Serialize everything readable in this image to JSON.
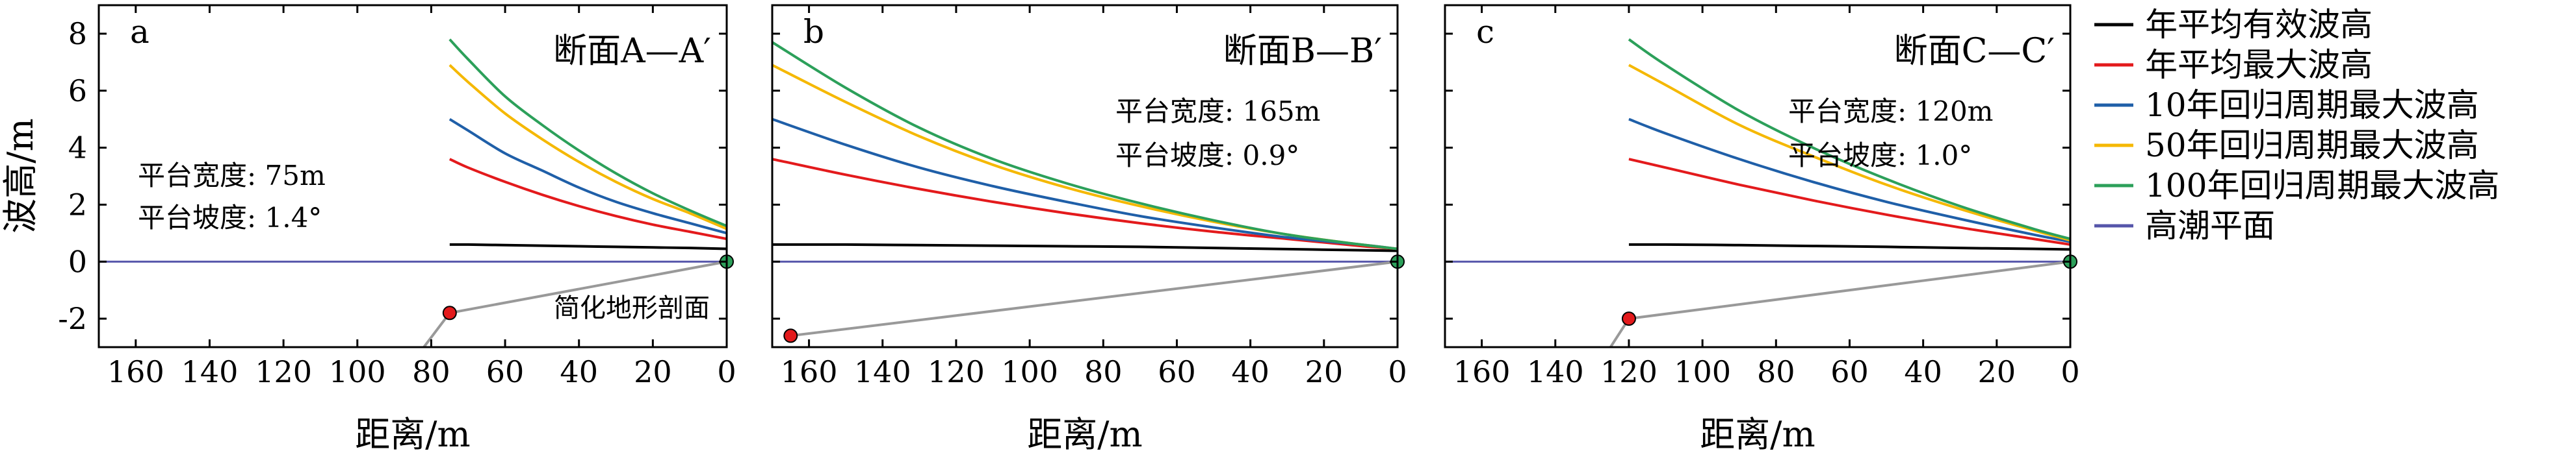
{
  "figure": {
    "ylabel": "波高/m",
    "xlabel": "距离/m"
  },
  "legend": [
    {
      "label": "年平均有效波高",
      "color": "#000000"
    },
    {
      "label": "年平均最大波高",
      "color": "#e31a1c"
    },
    {
      "label": "10年回归周期最大波高",
      "color": "#1f5fa8"
    },
    {
      "label": "50年回归周期最大波高",
      "color": "#f5b800"
    },
    {
      "label": "100年回归周期最大波高",
      "color": "#2ca05a"
    },
    {
      "label": "高潮平面",
      "color": "#5555aa"
    }
  ],
  "annotation": "简化地形剖面",
  "colors": {
    "profile": "#999999",
    "start_marker": "#e31a1c",
    "end_marker": "#2ca05a",
    "tide": "#5555aa"
  },
  "chart_data": [
    {
      "type": "line",
      "panel": "a",
      "title": "断面A—A′",
      "params": [
        "平台宽度: 75m",
        "平台坡度: 1.4°"
      ],
      "xlabel": "距离/m",
      "ylabel": "波高/m",
      "xlim": [
        170,
        0
      ],
      "ylim": [
        -3,
        9
      ],
      "xticks": [
        160,
        140,
        120,
        100,
        80,
        60,
        40,
        20,
        0
      ],
      "yticks": [
        -2,
        0,
        2,
        4,
        6,
        8
      ],
      "x": [
        75,
        70,
        60,
        50,
        40,
        30,
        20,
        10,
        0
      ],
      "series": [
        {
          "name": "年平均有效波高",
          "values": [
            0.6,
            0.6,
            0.58,
            0.56,
            0.54,
            0.52,
            0.5,
            0.48,
            0.45
          ]
        },
        {
          "name": "年平均最大波高",
          "values": [
            3.6,
            3.3,
            2.8,
            2.35,
            1.95,
            1.6,
            1.3,
            1.05,
            0.8
          ]
        },
        {
          "name": "10年回归周期最大波高",
          "values": [
            5.0,
            4.6,
            3.8,
            3.2,
            2.6,
            2.1,
            1.7,
            1.35,
            1.0
          ]
        },
        {
          "name": "50年回归周期最大波高",
          "values": [
            6.9,
            6.3,
            5.2,
            4.3,
            3.5,
            2.8,
            2.2,
            1.7,
            1.15
          ]
        },
        {
          "name": "100年回归周期最大波高",
          "values": [
            7.8,
            7.1,
            5.8,
            4.8,
            3.9,
            3.1,
            2.4,
            1.8,
            1.25
          ]
        }
      ],
      "tide_level": 0,
      "profile": {
        "x": [
          82,
          75,
          0
        ],
        "y": [
          -3,
          -1.8,
          0
        ]
      }
    },
    {
      "type": "line",
      "panel": "b",
      "title": "断面B—B′",
      "params": [
        "平台宽度: 165m",
        "平台坡度: 0.9°"
      ],
      "xlabel": "距离/m",
      "ylabel": "波高/m",
      "xlim": [
        170,
        0
      ],
      "ylim": [
        -3,
        9
      ],
      "xticks": [
        160,
        140,
        120,
        100,
        80,
        60,
        40,
        20,
        0
      ],
      "yticks": [
        -2,
        0,
        2,
        4,
        6,
        8
      ],
      "x": [
        170,
        150,
        130,
        110,
        90,
        70,
        50,
        30,
        10,
        0
      ],
      "series": [
        {
          "name": "年平均有效波高",
          "values": [
            0.6,
            0.6,
            0.58,
            0.56,
            0.54,
            0.52,
            0.48,
            0.44,
            0.4,
            0.38
          ]
        },
        {
          "name": "年平均最大波高",
          "values": [
            3.6,
            3.05,
            2.55,
            2.1,
            1.7,
            1.35,
            1.05,
            0.8,
            0.55,
            0.45
          ]
        },
        {
          "name": "10年回归周期最大波高",
          "values": [
            5.0,
            4.1,
            3.3,
            2.65,
            2.1,
            1.6,
            1.2,
            0.85,
            0.6,
            0.45
          ]
        },
        {
          "name": "50年回归周期最大波高",
          "values": [
            6.9,
            5.6,
            4.4,
            3.4,
            2.6,
            1.95,
            1.4,
            0.95,
            0.6,
            0.45
          ]
        },
        {
          "name": "100年回归周期最大波高",
          "values": [
            7.7,
            6.1,
            4.7,
            3.6,
            2.75,
            2.05,
            1.45,
            0.95,
            0.6,
            0.45
          ]
        }
      ],
      "tide_level": 0,
      "profile": {
        "x": [
          165,
          0
        ],
        "y": [
          -2.6,
          0
        ]
      }
    },
    {
      "type": "line",
      "panel": "c",
      "title": "断面C—C′",
      "params": [
        "平台宽度: 120m",
        "平台坡度: 1.0°"
      ],
      "xlabel": "距离/m",
      "ylabel": "波高/m",
      "xlim": [
        170,
        0
      ],
      "ylim": [
        -3,
        9
      ],
      "xticks": [
        160,
        140,
        120,
        100,
        80,
        60,
        40,
        20,
        0
      ],
      "yticks": [
        -2,
        0,
        2,
        4,
        6,
        8
      ],
      "x": [
        120,
        110,
        90,
        70,
        50,
        30,
        10,
        0
      ],
      "series": [
        {
          "name": "年平均有效波高",
          "values": [
            0.6,
            0.6,
            0.58,
            0.55,
            0.52,
            0.48,
            0.45,
            0.43
          ]
        },
        {
          "name": "年平均最大波高",
          "values": [
            3.6,
            3.3,
            2.7,
            2.15,
            1.65,
            1.2,
            0.8,
            0.6
          ]
        },
        {
          "name": "10年回归周期最大波高",
          "values": [
            5.0,
            4.5,
            3.6,
            2.8,
            2.1,
            1.5,
            0.95,
            0.7
          ]
        },
        {
          "name": "50年回归周期最大波高",
          "values": [
            6.9,
            6.2,
            4.8,
            3.7,
            2.7,
            1.85,
            1.1,
            0.75
          ]
        },
        {
          "name": "100年回归周期最大波高",
          "values": [
            7.8,
            6.9,
            5.3,
            4.0,
            2.9,
            1.95,
            1.15,
            0.8
          ]
        }
      ],
      "tide_level": 0,
      "profile": {
        "x": [
          125,
          120,
          0
        ],
        "y": [
          -3,
          -2.0,
          0
        ]
      }
    }
  ]
}
